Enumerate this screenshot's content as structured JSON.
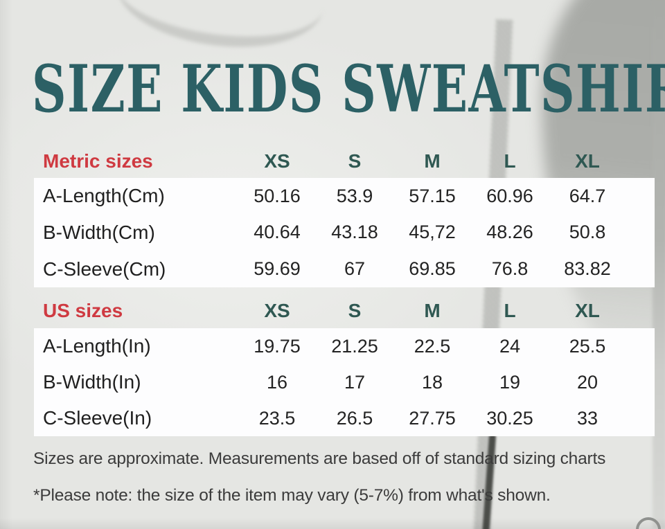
{
  "title": "SIZE KIDS SWEATSHIRT",
  "columns": {
    "xs": "XS",
    "s": "S",
    "m": "M",
    "l": "L",
    "xl": "XL"
  },
  "metric": {
    "header": "Metric sizes",
    "rows": [
      {
        "label": "A-Length(Cm)",
        "values": [
          "50.16",
          "53.9",
          "57.15",
          "60.96",
          "64.7"
        ]
      },
      {
        "label": "B-Width(Cm)",
        "values": [
          "40.64",
          "43.18",
          "45,72",
          "48.26",
          "50.8"
        ]
      },
      {
        "label": "C-Sleeve(Cm)",
        "values": [
          "59.69",
          "67",
          "69.85",
          "76.8",
          "83.82"
        ]
      }
    ]
  },
  "us": {
    "header": "US sizes",
    "rows": [
      {
        "label": "A-Length(In)",
        "values": [
          "19.75",
          "21.25",
          "22.5",
          "24",
          "25.5"
        ]
      },
      {
        "label": "B-Width(In)",
        "values": [
          "16",
          "17",
          "18",
          "19",
          "20"
        ]
      },
      {
        "label": "C-Sleeve(In)",
        "values": [
          "23.5",
          "26.5",
          "27.75",
          "30.25",
          "33"
        ]
      }
    ]
  },
  "footer": {
    "line1": "Sizes are approximate. Measurements are based off of standard sizing charts",
    "line2": "*Please note: the size of the item may vary (5-7%) from what's shown."
  },
  "colors": {
    "title_teal": "#2c6065",
    "size_header_teal": "#2f5852",
    "section_header_red": "#cf3a41",
    "value_text": "#232323",
    "band_background": "#fdfdfe",
    "photo_background": "#e5e6e3"
  },
  "chart_data": {
    "type": "table",
    "title": "SIZE KIDS SWEATSHIRT",
    "sections": [
      {
        "name": "Metric sizes",
        "columns": [
          "XS",
          "S",
          "M",
          "L",
          "XL"
        ],
        "rows": [
          [
            "A-Length(Cm)",
            50.16,
            53.9,
            57.15,
            60.96,
            64.7
          ],
          [
            "B-Width(Cm)",
            40.64,
            43.18,
            45.72,
            48.26,
            50.8
          ],
          [
            "C-Sleeve(Cm)",
            59.69,
            67,
            69.85,
            76.8,
            83.82
          ]
        ]
      },
      {
        "name": "US sizes",
        "columns": [
          "XS",
          "S",
          "M",
          "L",
          "XL"
        ],
        "rows": [
          [
            "A-Length(In)",
            19.75,
            21.25,
            22.5,
            24,
            25.5
          ],
          [
            "B-Width(In)",
            16,
            17,
            18,
            19,
            20
          ],
          [
            "C-Sleeve(In)",
            23.5,
            26.5,
            27.75,
            30.25,
            33
          ]
        ]
      }
    ],
    "notes": [
      "Sizes are approximate. Measurements are based off of standard sizing charts",
      "*Please note: the size of the item may vary (5-7%) from what's shown."
    ]
  }
}
